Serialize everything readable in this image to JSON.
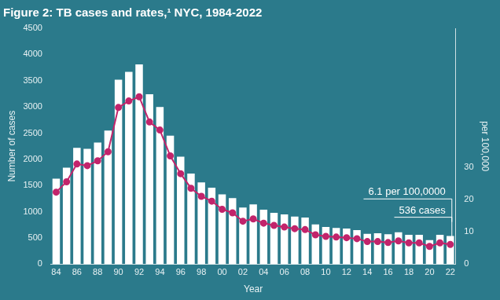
{
  "chart_data": {
    "type": "bar",
    "title": "Figure 2: TB cases and rates,¹ NYC, 1984-2022",
    "x_label": "Year",
    "y_label": "Number of cases",
    "y2_label": "per 100,000",
    "categories": [
      "84",
      null,
      "86",
      null,
      "88",
      null,
      "90",
      null,
      "92",
      null,
      "94",
      null,
      "96",
      null,
      "98",
      null,
      "00",
      null,
      "02",
      null,
      "04",
      null,
      "06",
      null,
      "08",
      null,
      "10",
      null,
      "12",
      null,
      "14",
      null,
      "16",
      null,
      "18",
      null,
      "20",
      null,
      "22"
    ],
    "series": [
      {
        "name": "Number of cases",
        "type": "bar",
        "color": "#ffffff",
        "values": [
          1630,
          1840,
          2220,
          2200,
          2320,
          2550,
          3520,
          3670,
          3810,
          3240,
          3000,
          2450,
          2050,
          1730,
          1560,
          1460,
          1330,
          1260,
          1080,
          1140,
          1040,
          980,
          950,
          910,
          890,
          760,
          710,
          690,
          680,
          650,
          580,
          590,
          570,
          610,
          560,
          560,
          460,
          560,
          536
        ]
      },
      {
        "name": "per 100,000",
        "type": "line",
        "color": "#c2246b",
        "marker": "circle",
        "axis": "y2",
        "values": [
          22.3,
          25.5,
          31,
          30.5,
          32,
          34.8,
          48.5,
          50.5,
          51.8,
          44,
          41.5,
          33.5,
          28,
          23.5,
          21,
          19.5,
          17,
          15.9,
          13.3,
          14,
          12.7,
          12,
          11.5,
          11,
          10.7,
          9.1,
          8.6,
          8.4,
          8.2,
          7.9,
          7.0,
          7.0,
          6.7,
          7.2,
          6.6,
          6.6,
          5.5,
          6.6,
          6.1
        ]
      }
    ],
    "annotations": [
      {
        "text": "6.1 per 100,0000",
        "series": "per 100,000"
      },
      {
        "text": "536 cases",
        "series": "Number of cases"
      }
    ],
    "ylim": [
      0,
      4500
    ],
    "yticks": [
      0,
      500,
      1000,
      1500,
      2000,
      2500,
      3000,
      3500,
      4000,
      4500
    ],
    "y2lim": [
      0,
      73
    ],
    "y2ticks": [
      0,
      10,
      20,
      30
    ],
    "grid": false,
    "legend": "none"
  }
}
